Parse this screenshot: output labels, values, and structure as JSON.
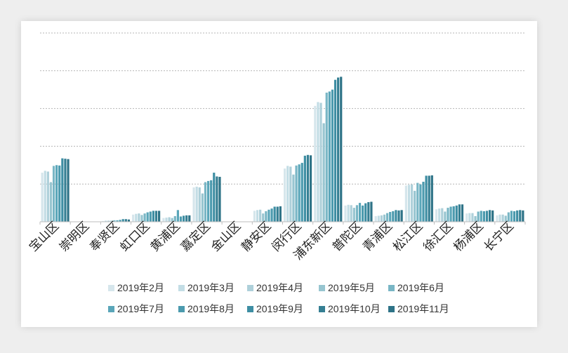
{
  "chart_data": {
    "type": "bar",
    "title": "",
    "xlabel": "",
    "ylabel": "",
    "ylim": [
      0,
      5
    ],
    "grid": true,
    "legend_position": "bottom",
    "categories": [
      "宝山区",
      "崇明区",
      "奉贤区",
      "虹口区",
      "黄浦区",
      "嘉定区",
      "金山区",
      "静安区",
      "闵行区",
      "浦东新区",
      "普陀区",
      "青浦区",
      "松江区",
      "徐汇区",
      "杨浦区",
      "长宁区"
    ],
    "series": [
      {
        "name": "2019年2月",
        "color": "#d6e6ec",
        "values": [
          1.3,
          0.0,
          0.02,
          0.19,
          0.1,
          0.91,
          0.0,
          0.29,
          1.41,
          3.07,
          0.43,
          0.15,
          0.96,
          0.33,
          0.22,
          0.17
        ]
      },
      {
        "name": "2019年3月",
        "color": "#c3dde5",
        "values": [
          1.35,
          0.0,
          0.03,
          0.21,
          0.11,
          0.93,
          0.0,
          0.31,
          1.48,
          3.17,
          0.45,
          0.16,
          0.98,
          0.35,
          0.23,
          0.19
        ]
      },
      {
        "name": "2019年4月",
        "color": "#aed0da",
        "values": [
          1.33,
          0.0,
          0.03,
          0.22,
          0.12,
          0.91,
          0.0,
          0.32,
          1.46,
          3.15,
          0.44,
          0.17,
          0.99,
          0.36,
          0.23,
          0.19
        ]
      },
      {
        "name": "2019年5月",
        "color": "#97c5d0",
        "values": [
          1.05,
          0.0,
          0.03,
          0.18,
          0.1,
          0.75,
          0.0,
          0.22,
          1.25,
          2.61,
          0.37,
          0.19,
          0.82,
          0.27,
          0.15,
          0.16
        ]
      },
      {
        "name": "2019年6月",
        "color": "#79b6c5",
        "values": [
          1.48,
          0.0,
          0.04,
          0.22,
          0.15,
          1.05,
          0.0,
          0.28,
          1.49,
          3.42,
          0.44,
          0.23,
          1.03,
          0.37,
          0.27,
          0.25
        ]
      },
      {
        "name": "2019年7月",
        "color": "#5aa6b9",
        "values": [
          1.5,
          0.0,
          0.04,
          0.25,
          0.31,
          1.08,
          0.0,
          0.32,
          1.52,
          3.45,
          0.5,
          0.26,
          0.99,
          0.4,
          0.29,
          0.29
        ]
      },
      {
        "name": "2019年8月",
        "color": "#4b9aae",
        "values": [
          1.49,
          0.0,
          0.05,
          0.27,
          0.14,
          1.1,
          0.0,
          0.35,
          1.56,
          3.5,
          0.43,
          0.28,
          1.06,
          0.41,
          0.28,
          0.28
        ]
      },
      {
        "name": "2019年9月",
        "color": "#3e8ea3",
        "values": [
          1.68,
          0.0,
          0.07,
          0.29,
          0.16,
          1.3,
          0.0,
          0.4,
          1.75,
          3.76,
          0.49,
          0.31,
          1.22,
          0.43,
          0.29,
          0.3
        ]
      },
      {
        "name": "2019年10月",
        "color": "#357f93",
        "values": [
          1.67,
          0.0,
          0.07,
          0.29,
          0.17,
          1.2,
          0.0,
          0.4,
          1.77,
          3.82,
          0.52,
          0.3,
          1.22,
          0.46,
          0.31,
          0.31
        ]
      },
      {
        "name": "2019年11月",
        "color": "#2e7387",
        "values": [
          1.66,
          0.0,
          0.06,
          0.29,
          0.17,
          1.19,
          0.0,
          0.41,
          1.76,
          3.84,
          0.53,
          0.31,
          1.23,
          0.46,
          0.3,
          0.3
        ]
      }
    ]
  }
}
